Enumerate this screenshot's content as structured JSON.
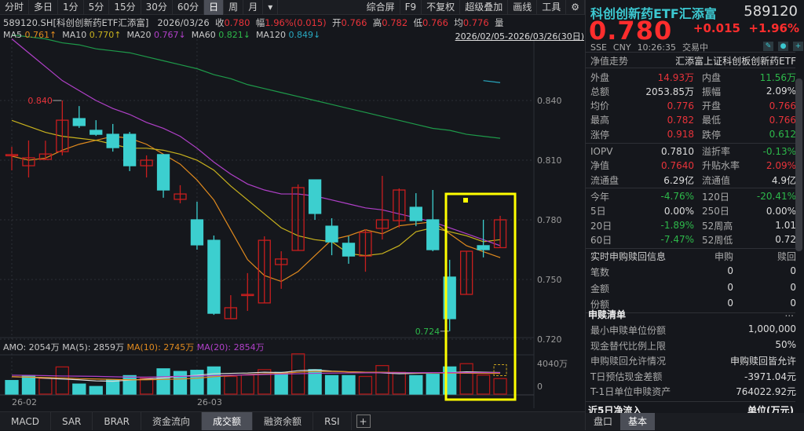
{
  "toolbar": {
    "items": [
      "分时",
      "多日",
      "1分",
      "5分",
      "15分",
      "30分",
      "60分",
      "日",
      "周",
      "月"
    ],
    "active": "日",
    "right_items": [
      "综合屏",
      "F9",
      "不复权",
      "超级叠加",
      "画线",
      "工具"
    ],
    "dropdown_icon": "caret-down",
    "settings_icon": "gear"
  },
  "info": {
    "symbol": "589120.SH[科创创新药ETF汇添富]",
    "date": "2026/03/26",
    "close_label": "收",
    "close": "0.780",
    "chg_label": "幅",
    "chg": "1.96%(0.015)",
    "open_label": "开",
    "open": "0.766",
    "high_label": "高",
    "high": "0.782",
    "low_label": "低",
    "low": "0.766",
    "avg_label": "均",
    "avg": "0.776",
    "vol_label": "量"
  },
  "ma": {
    "ma5_label": "MA5",
    "ma5": "0.761↑",
    "ma10_label": "MA10",
    "ma10": "0.770↑",
    "ma20_label": "MA20",
    "ma20": "0.767↓",
    "ma60_label": "MA60",
    "ma60": "0.821↓",
    "ma120_label": "MA120",
    "ma120": "0.849↓",
    "range": "2026/02/05-2026/03/26(30日)"
  },
  "colors": {
    "up": "#c81e1e",
    "down": "#3ccfcf",
    "ma5": "#e08a1e",
    "ma10": "#c8b21e",
    "ma20": "#b040c8",
    "ma60": "#1e9a4a",
    "ma120": "#28a8c0",
    "annotation": "#ffff00",
    "background": "#15171c"
  },
  "amo": {
    "amo": "AMO: 2054万",
    "ma5": "MA(5): 2859万",
    "ma10": "MA(10): 2745万",
    "ma20": "MA(20): 2854万"
  },
  "chart_data": {
    "type": "candlestick",
    "y_ticks": [
      "0.840",
      "0.810",
      "0.780",
      "0.750",
      "0.720"
    ],
    "ylim": [
      0.716,
      0.88
    ],
    "x_ticks": [
      "26-02",
      "26-03"
    ],
    "x_tick_index": [
      0,
      11
    ],
    "max_label": "0.840",
    "max_index": 3,
    "min_label": "0.724",
    "min_index": 26,
    "candles": [
      {
        "o": 0.8128,
        "h": 0.8167,
        "l": 0.8049,
        "c": 0.8128
      },
      {
        "o": 0.8072,
        "h": 0.8199,
        "l": 0.8013,
        "c": 0.8112
      },
      {
        "o": 0.8104,
        "h": 0.8198,
        "l": 0.81,
        "c": 0.8131
      },
      {
        "o": 0.8143,
        "h": 0.84,
        "l": 0.8124,
        "c": 0.8301
      },
      {
        "o": 0.8309,
        "h": 0.8372,
        "l": 0.8262,
        "c": 0.8274
      },
      {
        "o": 0.825,
        "h": 0.8301,
        "l": 0.8222,
        "c": 0.823
      },
      {
        "o": 0.823,
        "h": 0.8282,
        "l": 0.8143,
        "c": 0.8163
      },
      {
        "o": 0.823,
        "h": 0.8242,
        "l": 0.8045,
        "c": 0.8072
      },
      {
        "o": 0.8072,
        "h": 0.8124,
        "l": 0.8013,
        "c": 0.81
      },
      {
        "o": 0.8128,
        "h": 0.8128,
        "l": 0.7911,
        "c": 0.795
      },
      {
        "o": 0.7903,
        "h": 0.7974,
        "l": 0.7883,
        "c": 0.793
      },
      {
        "o": 0.78,
        "h": 0.7891,
        "l": 0.765,
        "c": 0.7674
      },
      {
        "o": 0.7697,
        "h": 0.7721,
        "l": 0.7322,
        "c": 0.733
      },
      {
        "o": 0.7303,
        "h": 0.7421,
        "l": 0.7303,
        "c": 0.7358
      },
      {
        "o": 0.7425,
        "h": 0.7532,
        "l": 0.7342,
        "c": 0.7425
      },
      {
        "o": 0.7382,
        "h": 0.7717,
        "l": 0.7382,
        "c": 0.7697
      },
      {
        "o": 0.7575,
        "h": 0.7642,
        "l": 0.7453,
        "c": 0.7603
      },
      {
        "o": 0.7646,
        "h": 0.7978,
        "l": 0.7646,
        "c": 0.7962
      },
      {
        "o": 0.8001,
        "h": 0.8001,
        "l": 0.78,
        "c": 0.7832
      },
      {
        "o": 0.7768,
        "h": 0.7808,
        "l": 0.7622,
        "c": 0.7689
      },
      {
        "o": 0.7682,
        "h": 0.7717,
        "l": 0.7579,
        "c": 0.7618
      },
      {
        "o": 0.7618,
        "h": 0.7753,
        "l": 0.7539,
        "c": 0.7737
      },
      {
        "o": 0.7757,
        "h": 0.8021,
        "l": 0.7701,
        "c": 0.78
      },
      {
        "o": 0.7796,
        "h": 0.7958,
        "l": 0.7761,
        "c": 0.795
      },
      {
        "o": 0.7863,
        "h": 0.7934,
        "l": 0.7768,
        "c": 0.7796
      },
      {
        "o": 0.78,
        "h": 0.795,
        "l": 0.7642,
        "c": 0.765
      },
      {
        "o": 0.7512,
        "h": 0.7599,
        "l": 0.724,
        "c": 0.7303
      },
      {
        "o": 0.7425,
        "h": 0.7642,
        "l": 0.7425,
        "c": 0.7642
      },
      {
        "o": 0.767,
        "h": 0.78,
        "l": 0.7611,
        "c": 0.765
      },
      {
        "o": 0.766,
        "h": 0.782,
        "l": 0.766,
        "c": 0.78
      }
    ],
    "ma_series": [
      {
        "name": "MA5",
        "values": [
          0.812,
          0.81,
          0.811,
          0.815,
          0.818,
          0.82,
          0.822,
          0.821,
          0.818,
          0.813,
          0.808,
          0.8,
          0.79,
          0.775,
          0.76,
          0.752,
          0.749,
          0.754,
          0.762,
          0.77,
          0.772,
          0.775,
          0.773,
          0.777,
          0.778,
          0.779,
          0.773,
          0.767,
          0.764,
          0.761
        ]
      },
      {
        "name": "MA10",
        "values": [
          0.83,
          0.827,
          0.824,
          0.822,
          0.821,
          0.82,
          0.818,
          0.816,
          0.816,
          0.815,
          0.813,
          0.81,
          0.805,
          0.797,
          0.79,
          0.783,
          0.776,
          0.772,
          0.77,
          0.769,
          0.763,
          0.762,
          0.763,
          0.767,
          0.774,
          0.776,
          0.774,
          0.772,
          0.769,
          0.77
        ]
      },
      {
        "name": "MA20",
        "values": [
          0.871,
          0.864,
          0.857,
          0.85,
          0.845,
          0.84,
          0.836,
          0.833,
          0.829,
          0.826,
          0.822,
          0.816,
          0.809,
          0.803,
          0.798,
          0.795,
          0.793,
          0.793,
          0.792,
          0.79,
          0.788,
          0.786,
          0.785,
          0.783,
          0.781,
          0.779,
          0.776,
          0.773,
          0.77,
          0.767
        ]
      },
      {
        "name": "MA60",
        "values": [
          0.873,
          0.872,
          0.871,
          0.869,
          0.868,
          0.866,
          0.865,
          0.864,
          0.862,
          0.86,
          0.858,
          0.856,
          0.853,
          0.851,
          0.848,
          0.846,
          0.844,
          0.842,
          0.84,
          0.838,
          0.836,
          0.834,
          0.832,
          0.83,
          0.828,
          0.826,
          0.825,
          0.823,
          0.822,
          0.821
        ]
      },
      {
        "name": "MA120",
        "values": [
          null,
          null,
          null,
          null,
          null,
          null,
          null,
          null,
          null,
          null,
          null,
          null,
          null,
          null,
          null,
          null,
          null,
          null,
          null,
          null,
          null,
          null,
          null,
          null,
          null,
          null,
          null,
          null,
          0.85,
          0.849
        ]
      }
    ],
    "volume": {
      "unit": "万",
      "y_ticks": [
        "4040万",
        "0"
      ],
      "values": [
        1800,
        2450,
        2090,
        3600,
        1330,
        1010,
        1870,
        2450,
        2090,
        3350,
        3000,
        3150,
        3600,
        2340,
        2520,
        3240,
        2880,
        5330,
        3240,
        2450,
        2450,
        2340,
        3780,
        2880,
        2450,
        2630,
        3600,
        4030,
        2520,
        2054
      ],
      "up": [
        false,
        false,
        true,
        true,
        false,
        false,
        false,
        false,
        true,
        false,
        false,
        false,
        false,
        true,
        true,
        true,
        false,
        true,
        false,
        false,
        false,
        true,
        true,
        true,
        false,
        false,
        false,
        true,
        true,
        true
      ],
      "ma5": [
        2300,
        2250,
        2100,
        2000,
        1900,
        1750,
        1700,
        1850,
        2000,
        2150,
        2350,
        2500,
        2700,
        2750,
        2800,
        2900,
        2850,
        3100,
        3200,
        3050,
        2950,
        2900,
        2800,
        2700,
        2750,
        2800,
        2850,
        2950,
        2900,
        2859
      ],
      "ma10": [
        2300,
        2250,
        2200,
        2150,
        2050,
        2000,
        1950,
        1900,
        1900,
        1950,
        2000,
        2100,
        2300,
        2450,
        2600,
        2700,
        2750,
        2900,
        3000,
        3000,
        2950,
        2900,
        2900,
        2850,
        2800,
        2800,
        2780,
        2760,
        2750,
        2745
      ],
      "ma20": [
        2500,
        2480,
        2450,
        2400,
        2380,
        2350,
        2300,
        2250,
        2250,
        2300,
        2350,
        2400,
        2450,
        2500,
        2550,
        2600,
        2650,
        2700,
        2750,
        2780,
        2800,
        2820,
        2830,
        2840,
        2840,
        2850,
        2850,
        2850,
        2855,
        2854
      ]
    }
  },
  "bottom_tabs": [
    "MACD",
    "SAR",
    "BRAR",
    "资金流向",
    "成交额",
    "融资余额",
    "RSI"
  ],
  "bottom_tab_active": "成交额",
  "panel": {
    "name": "科创创新药ETF汇添富",
    "code": "589120",
    "price": "0.780",
    "change": "+0.015",
    "change_pct": "+1.96%",
    "exchange": "SSE",
    "currency": "CNY",
    "time": "10:26:35",
    "status": "交易中",
    "nav_trend": "净值走势",
    "fund_name": "汇添富上证科创板创新药ETF",
    "quote_rows": [
      {
        "l1": "外盘",
        "v1": "14.93万",
        "c1": "red",
        "l2": "内盘",
        "v2": "11.56万",
        "c2": "green"
      },
      {
        "l1": "总额",
        "v1": "2053.85万",
        "c1": "white",
        "l2": "振幅",
        "v2": "2.09%",
        "c2": "white"
      },
      {
        "l1": "均价",
        "v1": "0.776",
        "c1": "red",
        "l2": "开盘",
        "v2": "0.766",
        "c2": "red"
      },
      {
        "l1": "最高",
        "v1": "0.782",
        "c1": "red",
        "l2": "最低",
        "v2": "0.766",
        "c2": "red"
      },
      {
        "l1": "涨停",
        "v1": "0.918",
        "c1": "red",
        "l2": "跌停",
        "v2": "0.612",
        "c2": "green"
      }
    ],
    "iopv_rows": [
      {
        "l1": "IOPV",
        "v1": "0.7810",
        "c1": "white",
        "l2": "溢折率",
        "v2": "-0.13%",
        "c2": "green"
      },
      {
        "l1": "净值",
        "v1": "0.7640",
        "c1": "red",
        "l2": "升贴水率",
        "v2": "2.09%",
        "c2": "red"
      },
      {
        "l1": "流通盘",
        "v1": "6.29亿",
        "c1": "white",
        "l2": "流通值",
        "v2": "4.9亿",
        "c2": "white"
      }
    ],
    "perf_rows": [
      {
        "l1": "今年",
        "v1": "-4.76%",
        "c1": "green",
        "l2": "120日",
        "v2": "-20.41%",
        "c2": "green"
      },
      {
        "l1": "5日",
        "v1": "0.00%",
        "c1": "white",
        "l2": "250日",
        "v2": "0.00%",
        "c2": "white"
      },
      {
        "l1": "20日",
        "v1": "-1.89%",
        "c1": "green",
        "l2": "52周高",
        "v2": "1.01",
        "c2": "white"
      },
      {
        "l1": "60日",
        "v1": "-7.47%",
        "c1": "green",
        "l2": "52周低",
        "v2": "0.72",
        "c2": "white"
      }
    ],
    "realtime": {
      "title": "实时申购赎回信息",
      "col1": "申购",
      "col2": "赎回",
      "rows": [
        {
          "l": "笔数",
          "a": "0",
          "b": "0"
        },
        {
          "l": "金额",
          "a": "0",
          "b": "0"
        },
        {
          "l": "份额",
          "a": "0",
          "b": "0"
        }
      ]
    },
    "list": {
      "title": "申赎清单",
      "more": "...",
      "rows": [
        {
          "l": "最小申赎单位份额",
          "v": "1,000,000"
        },
        {
          "l": "现金替代比例上限",
          "v": "50%"
        },
        {
          "l": "申购赎回允许情况",
          "v": "申购赎回皆允许"
        },
        {
          "l": "T日预估现金差额",
          "v": "-3971.04元"
        },
        {
          "l": "T-1日单位申赎资产",
          "v": "764022.92元"
        }
      ]
    },
    "inflow_title": "近5日净流入",
    "inflow_unit": "单位(万元)",
    "tabs": [
      "盘口",
      "基本"
    ],
    "tab_active": "基本"
  }
}
